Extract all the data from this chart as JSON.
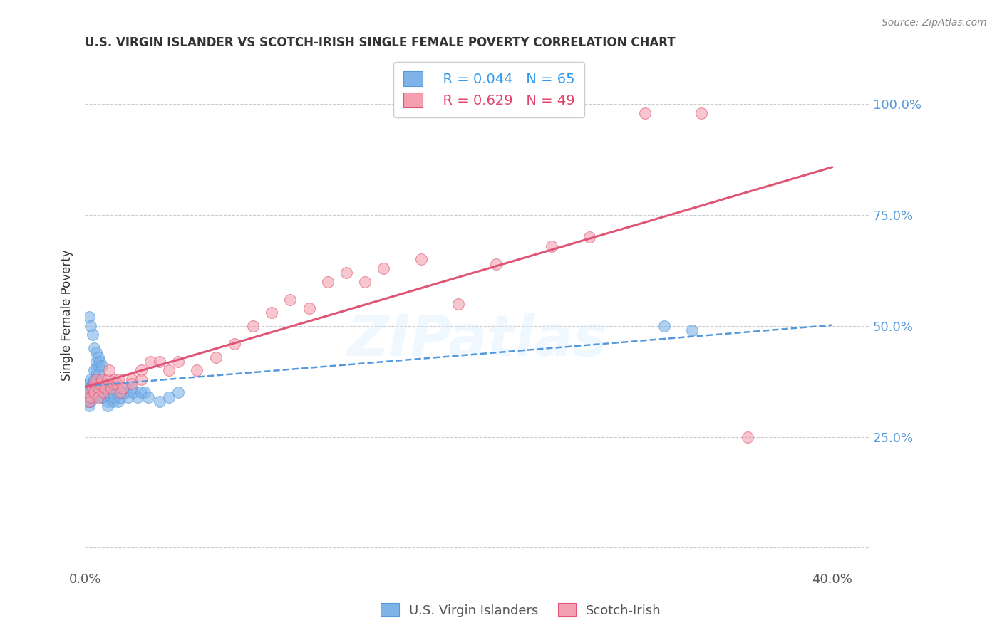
{
  "title": "U.S. VIRGIN ISLANDER VS SCOTCH-IRISH SINGLE FEMALE POVERTY CORRELATION CHART",
  "source": "Source: ZipAtlas.com",
  "ylabel": "Single Female Poverty",
  "xlim": [
    0.0,
    0.42
  ],
  "ylim": [
    -0.05,
    1.1
  ],
  "blue_R": 0.044,
  "blue_N": 65,
  "pink_R": 0.629,
  "pink_N": 49,
  "blue_color": "#7EB3E8",
  "pink_color": "#F4A0B0",
  "blue_line_color": "#5599DD",
  "pink_line_color": "#E05575",
  "watermark": "ZIPatlas",
  "blue_points_x": [
    0.001,
    0.001,
    0.001,
    0.002,
    0.002,
    0.002,
    0.003,
    0.003,
    0.003,
    0.003,
    0.004,
    0.004,
    0.004,
    0.005,
    0.005,
    0.005,
    0.006,
    0.006,
    0.006,
    0.007,
    0.007,
    0.007,
    0.008,
    0.008,
    0.009,
    0.009,
    0.01,
    0.01,
    0.011,
    0.011,
    0.012,
    0.012,
    0.013,
    0.014,
    0.015,
    0.015,
    0.016,
    0.016,
    0.017,
    0.018,
    0.018,
    0.019,
    0.02,
    0.021,
    0.022,
    0.023,
    0.025,
    0.026,
    0.028,
    0.03,
    0.032,
    0.034,
    0.04,
    0.045,
    0.05,
    0.002,
    0.003,
    0.004,
    0.005,
    0.006,
    0.007,
    0.008,
    0.009,
    0.31,
    0.325
  ],
  "blue_points_y": [
    0.35,
    0.36,
    0.33,
    0.37,
    0.34,
    0.32,
    0.38,
    0.36,
    0.35,
    0.33,
    0.37,
    0.35,
    0.34,
    0.4,
    0.38,
    0.36,
    0.42,
    0.4,
    0.38,
    0.41,
    0.39,
    0.37,
    0.38,
    0.36,
    0.35,
    0.34,
    0.36,
    0.34,
    0.37,
    0.35,
    0.33,
    0.32,
    0.35,
    0.34,
    0.36,
    0.33,
    0.37,
    0.34,
    0.35,
    0.36,
    0.33,
    0.34,
    0.35,
    0.36,
    0.35,
    0.34,
    0.36,
    0.35,
    0.34,
    0.35,
    0.35,
    0.34,
    0.33,
    0.34,
    0.35,
    0.52,
    0.5,
    0.48,
    0.45,
    0.44,
    0.43,
    0.42,
    0.41,
    0.5,
    0.49
  ],
  "pink_points_x": [
    0.001,
    0.002,
    0.003,
    0.004,
    0.005,
    0.005,
    0.006,
    0.007,
    0.007,
    0.008,
    0.009,
    0.01,
    0.011,
    0.012,
    0.013,
    0.014,
    0.015,
    0.016,
    0.017,
    0.018,
    0.019,
    0.02,
    0.025,
    0.025,
    0.03,
    0.03,
    0.035,
    0.04,
    0.045,
    0.05,
    0.06,
    0.07,
    0.08,
    0.09,
    0.1,
    0.11,
    0.12,
    0.13,
    0.14,
    0.15,
    0.16,
    0.18,
    0.2,
    0.22,
    0.25,
    0.27,
    0.3,
    0.33,
    0.355
  ],
  "pink_points_y": [
    0.35,
    0.33,
    0.34,
    0.36,
    0.37,
    0.35,
    0.38,
    0.36,
    0.34,
    0.37,
    0.38,
    0.35,
    0.36,
    0.38,
    0.4,
    0.36,
    0.37,
    0.38,
    0.37,
    0.38,
    0.35,
    0.36,
    0.38,
    0.37,
    0.4,
    0.38,
    0.42,
    0.42,
    0.4,
    0.42,
    0.4,
    0.43,
    0.46,
    0.5,
    0.53,
    0.56,
    0.54,
    0.6,
    0.62,
    0.6,
    0.63,
    0.65,
    0.55,
    0.64,
    0.68,
    0.7,
    0.98,
    0.98,
    0.25
  ]
}
